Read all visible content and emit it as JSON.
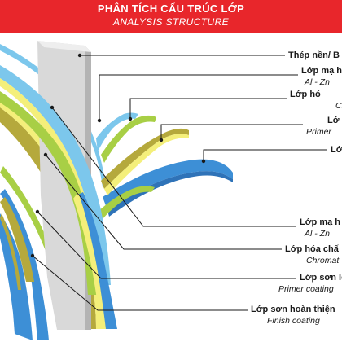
{
  "header": {
    "title_vi": "PHÂN TÍCH CẤU TRÚC LỚP",
    "title_en": "ANALYSIS STRUCTURE"
  },
  "colors": {
    "banner": "#e8262b",
    "steel": "#d9d9d9",
    "metallic_coat": "#7cc7ec",
    "chemical_layer": "#a8cf45",
    "primer": "#b5a93c",
    "finish": "#3d8fd6",
    "thin_yellow": "#f4ef7a"
  },
  "labels_top": [
    {
      "vi": "Thép nền/ B",
      "en": ""
    },
    {
      "vi": "Lớp mạ h",
      "en": "Al - Zn"
    },
    {
      "vi": "Lớp hó",
      "en": "Ch"
    },
    {
      "vi": "Lớ",
      "en": "Primer"
    },
    {
      "vi": "Lớ",
      "en": ""
    }
  ],
  "labels_bottom": [
    {
      "vi": "Lớp mạ h",
      "en": "Al - Zn"
    },
    {
      "vi": "Lớp hóa chấ",
      "en": "Chromat"
    },
    {
      "vi": "Lớp sơn lót",
      "en": "Primer coating"
    },
    {
      "vi": "Lớp sơn hoàn thiện",
      "en": "Finish coating"
    }
  ]
}
